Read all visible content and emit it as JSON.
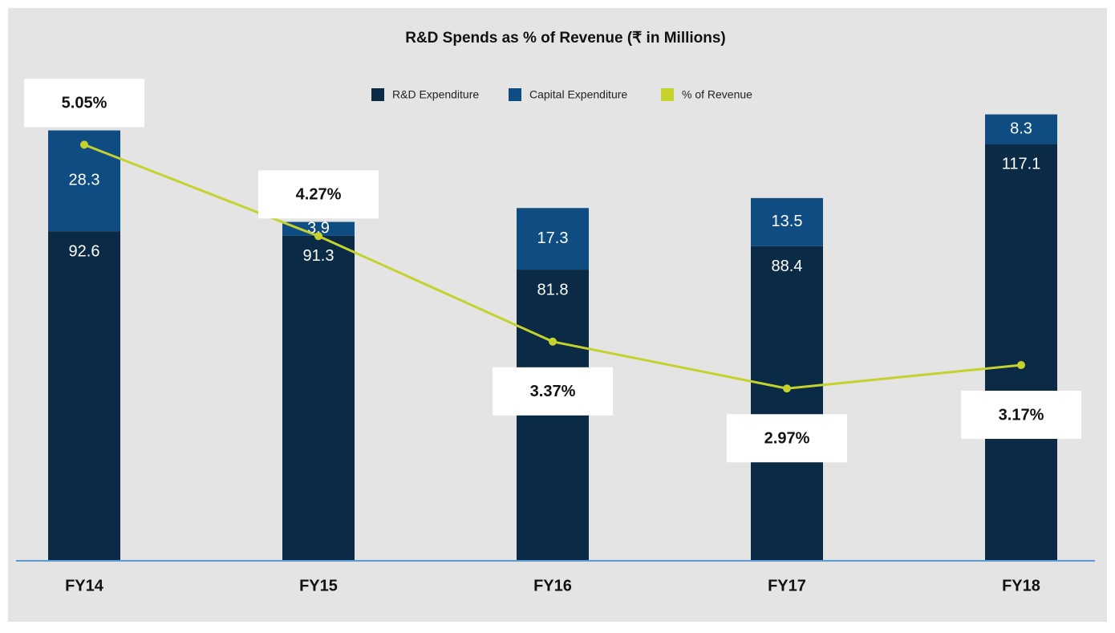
{
  "chart_data": {
    "type": "stacked-bar-line",
    "title": "R&D Spends as % of Revenue (₹  in Millions)",
    "categories": [
      "FY14",
      "FY15",
      "FY16",
      "FY17",
      "FY18"
    ],
    "series": [
      {
        "name": "R&D Expenditure",
        "color": "#0a2a45",
        "values": [
          92.6,
          91.3,
          81.8,
          88.4,
          117.1
        ]
      },
      {
        "name": "Capital Expenditure",
        "color": "#0f4c81",
        "values": [
          28.3,
          3.9,
          17.3,
          13.5,
          8.3
        ]
      },
      {
        "name": "% of Revenue",
        "color": "#c5d22e",
        "axis": "y2",
        "values": [
          5.05,
          4.27,
          3.37,
          2.97,
          3.17
        ],
        "value_labels": [
          "5.05%",
          "4.27%",
          "3.37%",
          "2.97%",
          "3.17%"
        ]
      }
    ],
    "ylim": [
      0,
      135
    ],
    "y2lim": [
      1.5,
      5.6
    ]
  }
}
